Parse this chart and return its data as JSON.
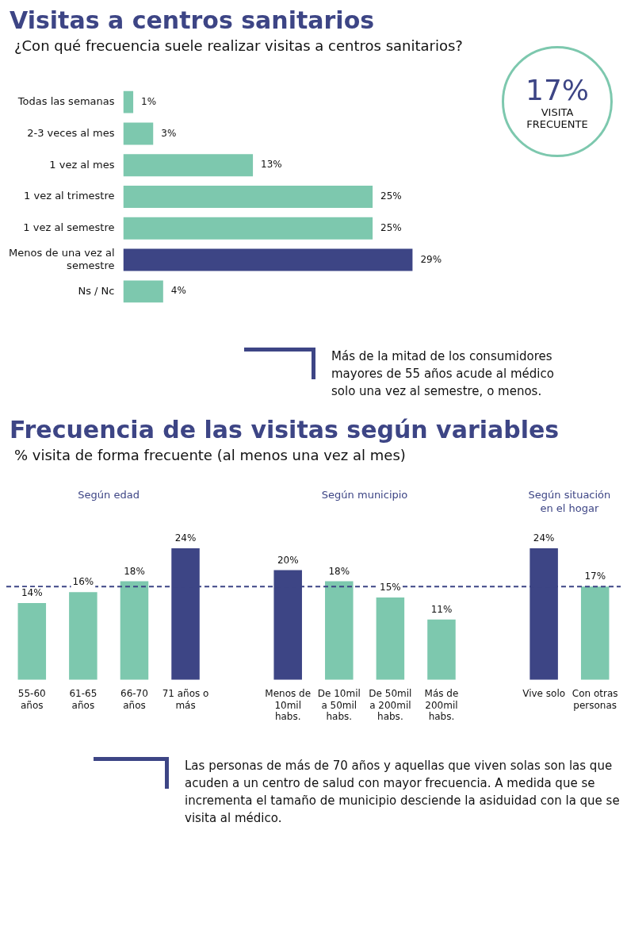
{
  "chart_data": [
    {
      "type": "bar",
      "orientation": "horizontal",
      "title": "Visitas a centros sanitarios",
      "subtitle": "¿Con qué frecuencia suele realizar visitas a centros sanitarios?",
      "categories": [
        "Todas las semanas",
        "2-3 veces al mes",
        "1 vez al mes",
        "1 vez al trimestre",
        "1 vez al semestre",
        "Menos de una vez al semestre",
        "Ns / Nc"
      ],
      "values": [
        1,
        3,
        13,
        25,
        25,
        29,
        4
      ],
      "colors": [
        "#7dc8ae",
        "#7dc8ae",
        "#7dc8ae",
        "#7dc8ae",
        "#7dc8ae",
        "#3d4585",
        "#7dc8ae"
      ],
      "value_labels": [
        "1%",
        "3%",
        "13%",
        "25%",
        "25%",
        "29%",
        "4%"
      ],
      "annotations": [
        "17%",
        "VISITA FRECUENTE",
        "Más de la mitad de los consumidores mayores de 55 años acude al médico solo una vez al semestre, o menos."
      ]
    },
    {
      "type": "bar",
      "title": "Frecuencia de las visitas según variables",
      "subtitle": "% visita de forma frecuente (al menos una vez al mes)",
      "categories": [
        "55-60 años",
        "61-65 años",
        "66-70 años",
        "71 años o más",
        null,
        "Menos de 10mil habs.",
        "De 10mil a 50mil habs.",
        "De 50mil a 200mil habs.",
        "Más de 200mil habs.",
        null,
        "Vive solo",
        "Con otras personas"
      ],
      "values": [
        14,
        16,
        18,
        24,
        null,
        20,
        18,
        15,
        11,
        null,
        24,
        17
      ],
      "colors": [
        "#7dc8ae",
        "#7dc8ae",
        "#7dc8ae",
        "#3d4585",
        null,
        "#3d4585",
        "#7dc8ae",
        "#7dc8ae",
        "#7dc8ae",
        null,
        "#3d4585",
        "#7dc8ae"
      ],
      "value_labels": [
        "14%",
        "16%",
        "18%",
        "24%",
        null,
        "20%",
        "18%",
        "15%",
        "11%",
        null,
        "24%",
        "17%"
      ],
      "ref_lines": [
        {
          "axis": "y",
          "value": 17,
          "color": "#3d4585",
          "line_style": "dashed"
        }
      ],
      "annotations": [
        "Según edad",
        "Según municipio",
        "Según situación en el hogar",
        "Las personas de más de 70 años y aquellas que viven solas son las que acuden a un centro de salud con mayor frecuencia. A medida que se incrementa el tamaño de municipio desciende la asiduidad con la que se visita al médico."
      ]
    }
  ]
}
